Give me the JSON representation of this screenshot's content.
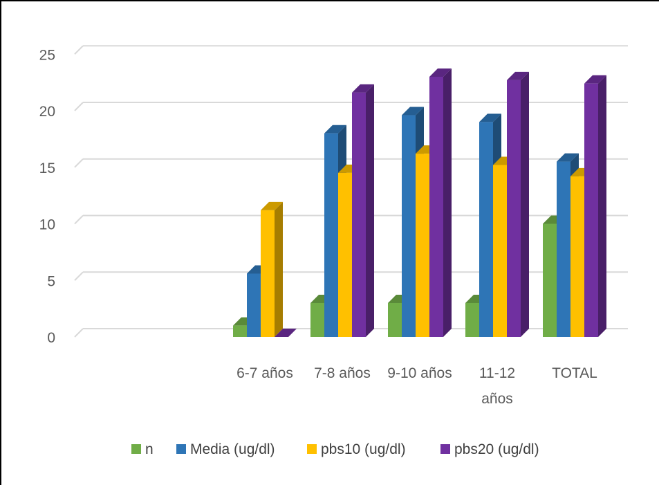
{
  "chart_data": {
    "type": "bar",
    "style": "3d-clustered-column",
    "title": "",
    "xlabel": "",
    "ylabel": "",
    "ylim": [
      0,
      25
    ],
    "yticks": [
      0,
      5,
      10,
      15,
      20,
      25
    ],
    "grid": true,
    "legend_position": "bottom",
    "categories": [
      [
        "6-7 años"
      ],
      [
        "7-8 años"
      ],
      [
        "9-10 años"
      ],
      [
        "11-12",
        "años"
      ],
      [
        "TOTAL"
      ]
    ],
    "series": [
      {
        "name": "n",
        "color": "#70AD47",
        "values": [
          1,
          3,
          3,
          3,
          10
        ]
      },
      {
        "name": "Media (ug/dl)",
        "color": "#2E75B6",
        "values": [
          5.6,
          18,
          19.6,
          19,
          15.5
        ]
      },
      {
        "name": "pbs10 (ug/dl)",
        "color": "#FFC000",
        "values": [
          11.2,
          14.5,
          16.2,
          15.2,
          14.2
        ]
      },
      {
        "name": "pbs20 (ug/dl)",
        "color": "#7030A0",
        "values": [
          0,
          21.6,
          23,
          22.7,
          22.4
        ]
      }
    ]
  }
}
